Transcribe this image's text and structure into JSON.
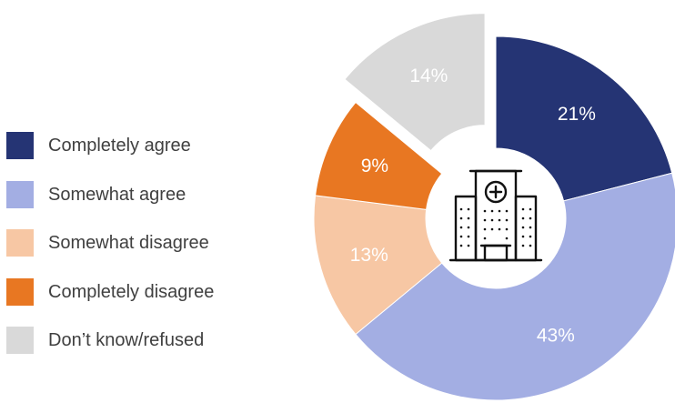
{
  "chart_data": {
    "type": "pie",
    "categories": [
      "Completely agree",
      "Somewhat agree",
      "Somewhat disagree",
      "Completely disagree",
      "Don’t know/refused"
    ],
    "values": [
      21,
      43,
      13,
      9,
      14
    ],
    "labels": [
      "21%",
      "43%",
      "13%",
      "9%",
      "14%"
    ],
    "colors": [
      "#253474",
      "#a3aee3",
      "#f7c7a4",
      "#e87722",
      "#d9d9d9"
    ],
    "exploded": [
      false,
      false,
      false,
      false,
      true
    ],
    "legend_position": "left",
    "center_icon": "hospital-icon"
  }
}
